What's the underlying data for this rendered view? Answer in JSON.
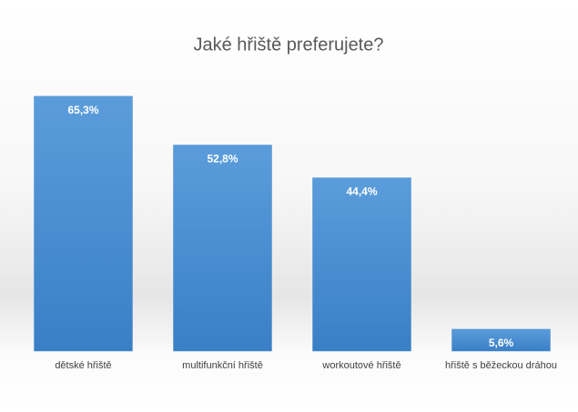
{
  "chart_data": {
    "type": "bar",
    "title": "Jaké hřiště preferujete?",
    "categories": [
      "dětské hřiště",
      "multifunkční hřiště",
      "workoutové hřiště",
      "hřiště s běžeckou dráhou"
    ],
    "values": [
      65.3,
      52.8,
      44.4,
      5.6
    ],
    "value_labels": [
      "65,3%",
      "52,8%",
      "44,4%",
      "5,6%"
    ],
    "color": "#4a8fd3"
  }
}
